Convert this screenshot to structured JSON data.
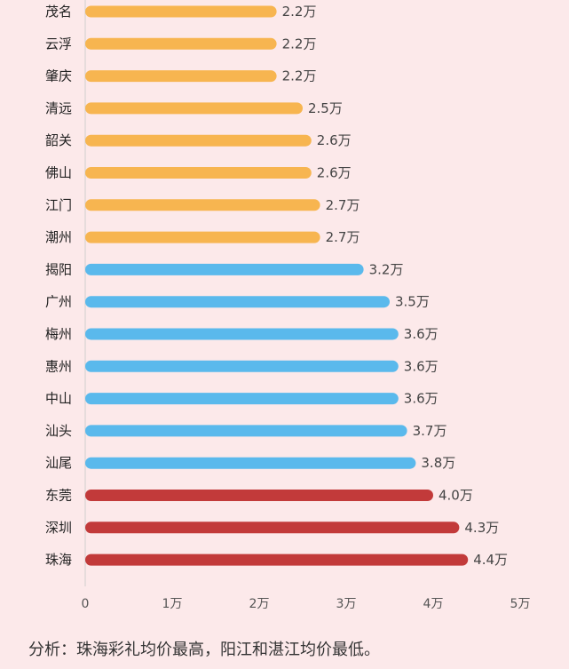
{
  "chart_data": {
    "type": "bar",
    "orientation": "horizontal",
    "categories": [
      "茂名",
      "云浮",
      "肇庆",
      "清远",
      "韶关",
      "佛山",
      "江门",
      "潮州",
      "揭阳",
      "广州",
      "梅州",
      "惠州",
      "中山",
      "汕头",
      "汕尾",
      "东莞",
      "深圳",
      "珠海"
    ],
    "values": [
      2.2,
      2.2,
      2.2,
      2.5,
      2.6,
      2.6,
      2.7,
      2.7,
      3.2,
      3.5,
      3.6,
      3.6,
      3.6,
      3.7,
      3.8,
      4.0,
      4.3,
      4.4
    ],
    "value_labels": [
      "2.2万",
      "2.2万",
      "2.2万",
      "2.5万",
      "2.6万",
      "2.6万",
      "2.7万",
      "2.7万",
      "3.2万",
      "3.5万",
      "3.6万",
      "3.6万",
      "3.6万",
      "3.7万",
      "3.8万",
      "4.0万",
      "4.3万",
      "4.4万"
    ],
    "groups": [
      "orange",
      "orange",
      "orange",
      "orange",
      "orange",
      "orange",
      "orange",
      "orange",
      "blue",
      "blue",
      "blue",
      "blue",
      "blue",
      "blue",
      "blue",
      "red",
      "red",
      "red"
    ],
    "colors": {
      "orange": "#f7b550",
      "blue": "#5ab9ec",
      "red": "#c23a3a"
    },
    "xticks": [
      "0",
      "1万",
      "2万",
      "3万",
      "4万",
      "5万"
    ],
    "xlim": [
      0,
      5
    ],
    "grid": false
  },
  "note": "分析：珠海彩礼均价最高，阳江和湛江均价最低。"
}
